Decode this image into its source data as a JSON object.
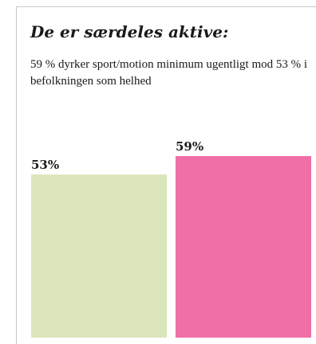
{
  "header": {
    "title": "De er særdeles aktive:",
    "subtitle": "59 % dyrker sport/motion minimum ugentligt mod 53 % i befolkningen som helhed"
  },
  "chart_data": {
    "type": "bar",
    "categories": [
      "",
      ""
    ],
    "values": [
      53,
      59
    ],
    "data_labels": [
      "53%",
      "59%"
    ],
    "colors": [
      "#dbe5bb",
      "#f06fa6"
    ],
    "ylim": [
      0,
      59
    ],
    "grid": false,
    "legend": "none"
  }
}
